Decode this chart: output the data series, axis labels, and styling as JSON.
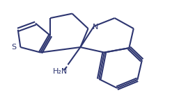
{
  "bg_color": "#ffffff",
  "line_color": "#2d3570",
  "line_width": 1.5,
  "text_color": "#2d3570",
  "fig_width": 2.8,
  "fig_height": 1.47,
  "dpi": 100,
  "label_NH2": "H₂N",
  "label_N": "N",
  "label_S": "S",
  "xlim": [
    0,
    10
  ],
  "ylim": [
    0,
    5.25
  ]
}
